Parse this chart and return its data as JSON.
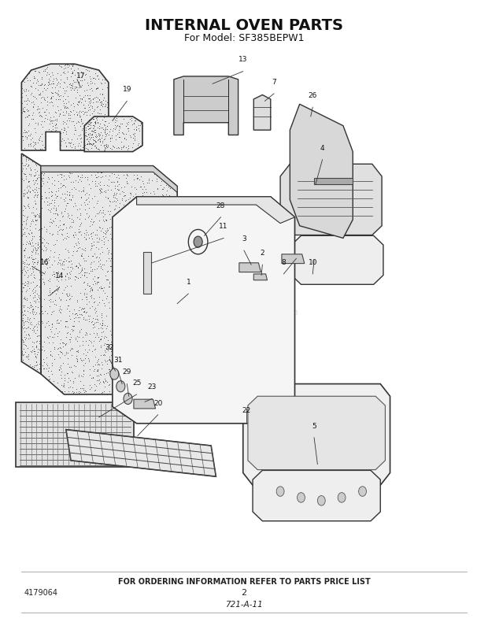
{
  "title": "INTERNAL OVEN PARTS",
  "subtitle": "For Model: SF385BEPW1",
  "footer_text": "FOR ORDERING INFORMATION REFER TO PARTS PRICE LIST",
  "part_number": "4179064",
  "page_number": "2",
  "diagram_code": "721-A-11",
  "bg_color": "#ffffff",
  "title_fontsize": 14,
  "subtitle_fontsize": 9,
  "footer_fontsize": 7,
  "watermark": "ShopReplacementParts.com",
  "fig_width": 6.2,
  "fig_height": 7.9,
  "dpi": 100
}
